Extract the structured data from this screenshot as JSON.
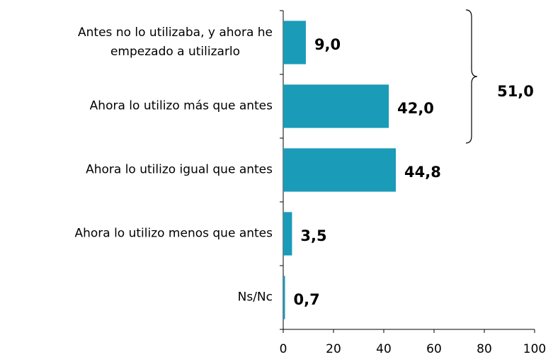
{
  "chart_data": {
    "type": "bar",
    "orientation": "horizontal",
    "categories": [
      "Antes no lo utilizaba, y ahora he\nempezado a utilizarlo",
      "Ahora lo utilizo más que antes",
      "Ahora lo utilizo igual que antes",
      "Ahora lo utilizo menos que antes",
      "Ns/Nc"
    ],
    "values": [
      9.0,
      42.0,
      44.8,
      3.5,
      0.7
    ],
    "value_labels": [
      "9,0",
      "42,0",
      "44,8",
      "3,5",
      "0,7"
    ],
    "color": "#1a9bb8",
    "xlim": [
      0,
      100
    ],
    "xticks": [
      0,
      20,
      40,
      60,
      80,
      100
    ],
    "annotation": "51,0"
  }
}
